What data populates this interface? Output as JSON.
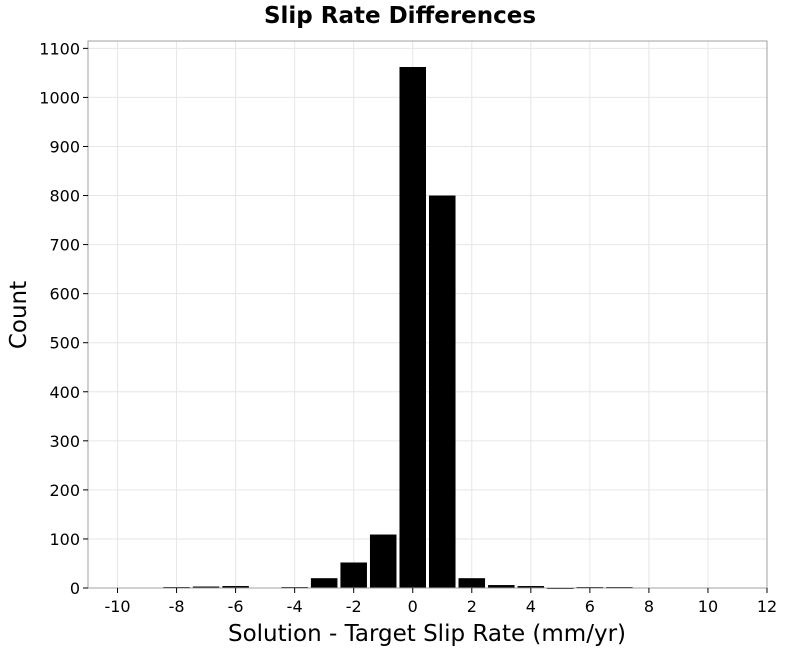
{
  "chart_data": {
    "type": "bar",
    "title": "Slip Rate Differences",
    "xlabel": "Solution - Target Slip Rate (mm/yr)",
    "ylabel": "Count",
    "xlim": [
      -11,
      12
    ],
    "ylim": [
      0,
      1115
    ],
    "x_ticks": [
      -10,
      -8,
      -6,
      -4,
      -2,
      0,
      2,
      4,
      6,
      8,
      10,
      12
    ],
    "y_ticks": [
      0,
      100,
      200,
      300,
      400,
      500,
      600,
      700,
      800,
      900,
      1000,
      1100
    ],
    "bin_width": 1,
    "grid": true,
    "bar_color": "#000000",
    "grid_color": "#e6e6e6",
    "bins": [
      {
        "x": -10,
        "value": 0
      },
      {
        "x": -9,
        "value": 0
      },
      {
        "x": -8,
        "value": 2
      },
      {
        "x": -7,
        "value": 3
      },
      {
        "x": -6,
        "value": 4
      },
      {
        "x": -5,
        "value": 0
      },
      {
        "x": -4,
        "value": 2
      },
      {
        "x": -3,
        "value": 20
      },
      {
        "x": -2,
        "value": 52
      },
      {
        "x": -1,
        "value": 109
      },
      {
        "x": 0,
        "value": 1062
      },
      {
        "x": 1,
        "value": 800
      },
      {
        "x": 2,
        "value": 20
      },
      {
        "x": 3,
        "value": 6
      },
      {
        "x": 4,
        "value": 4
      },
      {
        "x": 5,
        "value": 1
      },
      {
        "x": 6,
        "value": 2
      },
      {
        "x": 7,
        "value": 2
      },
      {
        "x": 8,
        "value": 0
      },
      {
        "x": 9,
        "value": 0
      },
      {
        "x": 10,
        "value": 0
      },
      {
        "x": 11,
        "value": 0
      }
    ]
  }
}
